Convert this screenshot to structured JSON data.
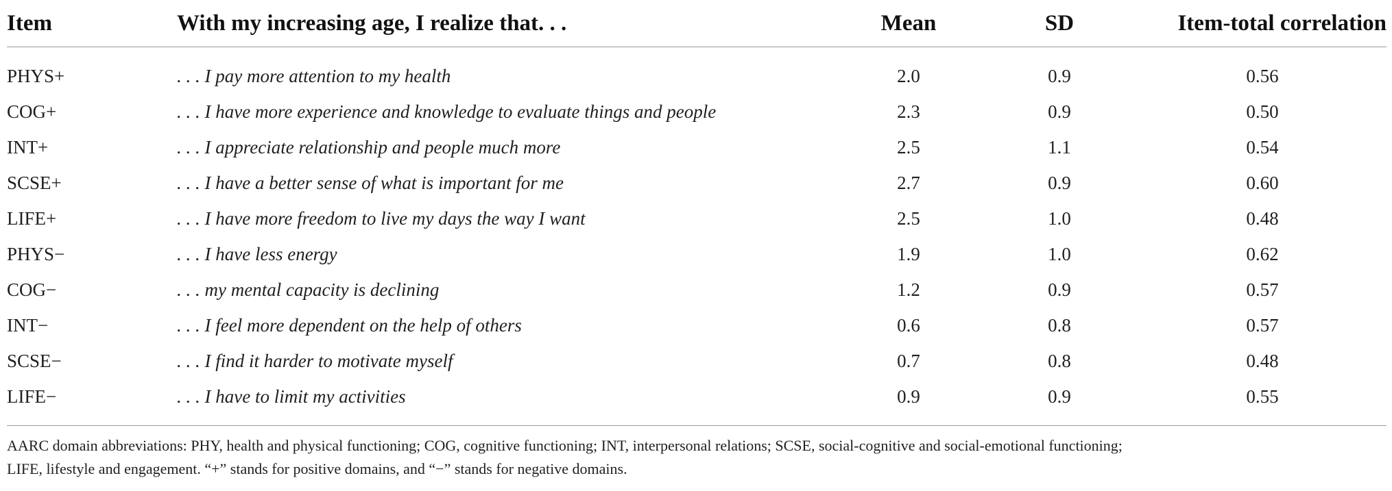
{
  "table": {
    "headers": {
      "item": "Item",
      "statement": "With my increasing age, I realize that. . .",
      "mean": "Mean",
      "sd": "SD",
      "correlation": "Item-total correlation"
    },
    "rows": [
      {
        "item": "PHYS+",
        "statement": ". . . I pay more attention to my health",
        "mean": "2.0",
        "sd": "0.9",
        "correlation": "0.56"
      },
      {
        "item": "COG+",
        "statement": ". . . I have more experience and knowledge to evaluate things and people",
        "mean": "2.3",
        "sd": "0.9",
        "correlation": "0.50"
      },
      {
        "item": "INT+",
        "statement": ". . . I appreciate relationship and people much more",
        "mean": "2.5",
        "sd": "1.1",
        "correlation": "0.54"
      },
      {
        "item": "SCSE+",
        "statement": ". . . I have a better sense of what is important for me",
        "mean": "2.7",
        "sd": "0.9",
        "correlation": "0.60"
      },
      {
        "item": "LIFE+",
        "statement": ". . . I have more freedom to live my days the way I want",
        "mean": "2.5",
        "sd": "1.0",
        "correlation": "0.48"
      },
      {
        "item": "PHYS−",
        "statement": ". . . I have less energy",
        "mean": "1.9",
        "sd": "1.0",
        "correlation": "0.62"
      },
      {
        "item": "COG−",
        "statement": ". . . my mental capacity is declining",
        "mean": "1.2",
        "sd": "0.9",
        "correlation": "0.57"
      },
      {
        "item": "INT−",
        "statement": ". . . I feel more dependent on the help of others",
        "mean": "0.6",
        "sd": "0.8",
        "correlation": "0.57"
      },
      {
        "item": "SCSE−",
        "statement": ". . . I find it harder to motivate myself",
        "mean": "0.7",
        "sd": "0.8",
        "correlation": "0.48"
      },
      {
        "item": "LIFE−",
        "statement": ". . . I have to limit my activities",
        "mean": "0.9",
        "sd": "0.9",
        "correlation": "0.55"
      }
    ]
  },
  "footnote": {
    "line1": "AARC domain abbreviations: PHY, health and physical functioning; COG, cognitive functioning; INT, interpersonal relations; SCSE, social-cognitive and social-emotional functioning;",
    "line2": "LIFE, lifestyle and engagement. “+” stands for positive domains, and “−” stands for negative domains."
  }
}
